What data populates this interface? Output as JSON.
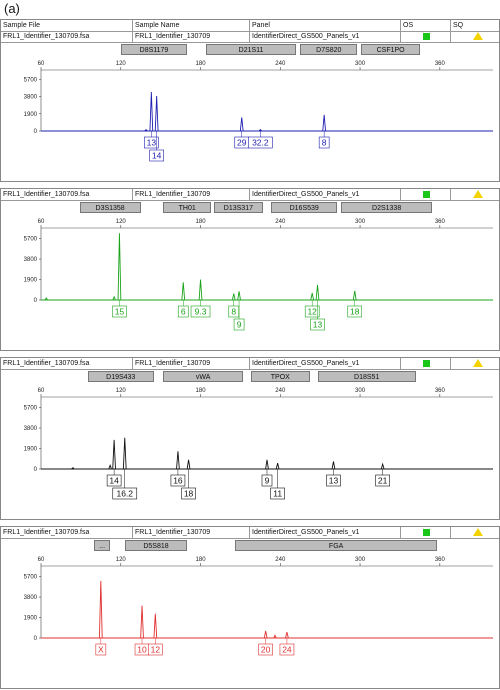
{
  "figure_label": "(a)",
  "header": {
    "col_sample_file": "Sample File",
    "col_sample_name": "Sample Name",
    "col_panel": "Panel",
    "col_os": "OS",
    "col_sq": "SQ"
  },
  "colors": {
    "os_ok": "#19c619",
    "sq_warn": "#f2d300"
  },
  "chart_data": [
    {
      "type": "line",
      "sample_file": "FRL1_Identifier_130709.fsa",
      "sample_name": "FRL1_Identifier_130709",
      "panel": "IdentifierDirect_GS500_Panels_v1",
      "color": "#1f1fb0",
      "xlim": [
        60,
        400
      ],
      "x_ticks": [
        60,
        120,
        180,
        240,
        300,
        360
      ],
      "ylim": [
        0,
        6500
      ],
      "y_ticks": [
        0,
        1900,
        3800,
        5700
      ],
      "loci": [
        {
          "name": "D8S1179",
          "range": [
            120,
            170
          ]
        },
        {
          "name": "D21S11",
          "range": [
            184,
            252
          ]
        },
        {
          "name": "D7S820",
          "range": [
            255,
            298
          ]
        },
        {
          "name": "CSF1PO",
          "range": [
            301,
            345
          ]
        }
      ],
      "peaks": [
        {
          "x": 139,
          "height": 150
        },
        {
          "x": 143,
          "height": 4300,
          "allele": "13"
        },
        {
          "x": 147,
          "height": 3850,
          "allele": "14"
        },
        {
          "x": 211,
          "height": 1500,
          "allele": "29"
        },
        {
          "x": 225,
          "height": 150,
          "allele": "32.2"
        },
        {
          "x": 273,
          "height": 1780,
          "allele": "8"
        }
      ]
    },
    {
      "type": "line",
      "sample_file": "FRL1_Identifier_130709.fsa",
      "sample_name": "FRL1_Identifier_130709",
      "panel": "IdentifierDirect_GS500_Panels_v1",
      "color": "#1aa31a",
      "xlim": [
        60,
        400
      ],
      "x_ticks": [
        60,
        120,
        180,
        240,
        300,
        360
      ],
      "ylim": [
        0,
        6500
      ],
      "y_ticks": [
        0,
        1900,
        3800,
        5700
      ],
      "loci": [
        {
          "name": "D3S1358",
          "range": [
            89,
            135
          ]
        },
        {
          "name": "TH01",
          "range": [
            152,
            188
          ]
        },
        {
          "name": "D13S317",
          "range": [
            190,
            227
          ]
        },
        {
          "name": "D16S539",
          "range": [
            233,
            283
          ]
        },
        {
          "name": "D2S1338",
          "range": [
            286,
            354
          ]
        }
      ],
      "peaks": [
        {
          "x": 64,
          "height": 180
        },
        {
          "x": 115,
          "height": 300
        },
        {
          "x": 119,
          "height": 6200,
          "allele": "15"
        },
        {
          "x": 167,
          "height": 1650,
          "allele": "6"
        },
        {
          "x": 180,
          "height": 1900,
          "allele": "9.3"
        },
        {
          "x": 205,
          "height": 600,
          "allele": "8"
        },
        {
          "x": 209,
          "height": 800,
          "allele": "9"
        },
        {
          "x": 264,
          "height": 650,
          "allele": "12"
        },
        {
          "x": 268,
          "height": 1400,
          "allele": "13"
        },
        {
          "x": 296,
          "height": 850,
          "allele": "18"
        }
      ]
    },
    {
      "type": "line",
      "sample_file": "FRL1_Identifier_130709.fsa",
      "sample_name": "FRL1_Identifier_130709",
      "panel": "IdentifierDirect_GS500_Panels_v1",
      "color": "#111111",
      "xlim": [
        60,
        400
      ],
      "x_ticks": [
        60,
        120,
        180,
        240,
        300,
        360
      ],
      "ylim": [
        0,
        6500
      ],
      "y_ticks": [
        0,
        1900,
        3800,
        5700
      ],
      "loci": [
        {
          "name": "D19S433",
          "range": [
            95,
            145
          ]
        },
        {
          "name": "vWA",
          "range": [
            152,
            212
          ]
        },
        {
          "name": "TPOX",
          "range": [
            218,
            262
          ]
        },
        {
          "name": "D18S51",
          "range": [
            268,
            342
          ]
        }
      ],
      "peaks": [
        {
          "x": 84,
          "height": 120
        },
        {
          "x": 112,
          "height": 350
        },
        {
          "x": 115,
          "height": 2700,
          "allele": "14"
        },
        {
          "x": 123,
          "height": 2900,
          "allele": "16.2"
        },
        {
          "x": 163,
          "height": 1650,
          "allele": "16"
        },
        {
          "x": 171,
          "height": 850,
          "allele": "18"
        },
        {
          "x": 230,
          "height": 850,
          "allele": "9"
        },
        {
          "x": 238,
          "height": 550,
          "allele": "11"
        },
        {
          "x": 280,
          "height": 700,
          "allele": "13"
        },
        {
          "x": 317,
          "height": 450,
          "allele": "21"
        }
      ]
    },
    {
      "type": "line",
      "sample_file": "FRL1_Identifier_130709.fsa",
      "sample_name": "FRL1_Identifier_130709",
      "panel": "IdentifierDirect_GS500_Panels_v1",
      "color": "#e03030",
      "xlim": [
        60,
        400
      ],
      "x_ticks": [
        60,
        120,
        180,
        240,
        300,
        360
      ],
      "ylim": [
        0,
        6500
      ],
      "y_ticks": [
        0,
        1900,
        3800,
        5700
      ],
      "loci": [
        {
          "name": "...",
          "range": [
            100,
            112
          ]
        },
        {
          "name": "D5S818",
          "range": [
            123,
            170
          ]
        },
        {
          "name": "FGA",
          "range": [
            206,
            358
          ]
        }
      ],
      "peaks": [
        {
          "x": 105,
          "height": 5300,
          "allele": "X"
        },
        {
          "x": 136,
          "height": 3000,
          "allele": "10"
        },
        {
          "x": 146,
          "height": 2250,
          "allele": "12"
        },
        {
          "x": 229,
          "height": 650,
          "allele": "20"
        },
        {
          "x": 236,
          "height": 250
        },
        {
          "x": 245,
          "height": 550,
          "allele": "24"
        }
      ]
    }
  ]
}
